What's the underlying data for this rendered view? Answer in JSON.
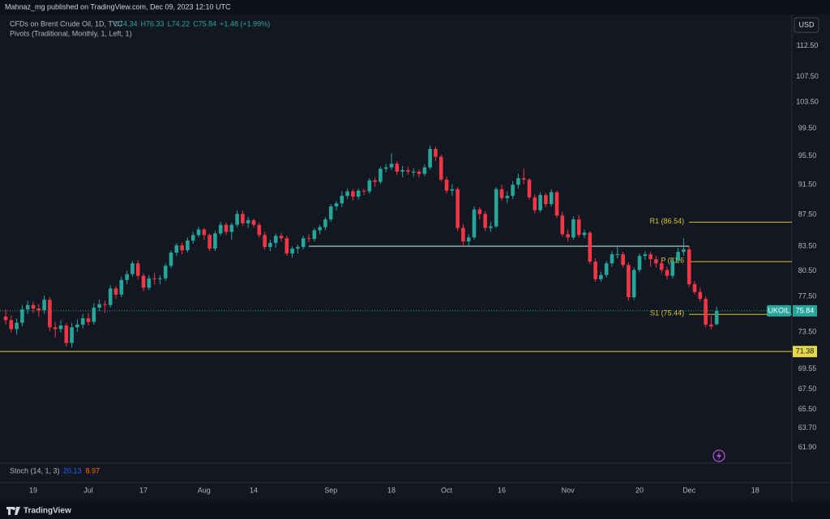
{
  "header": {
    "published": "Mahnaz_mg published on TradingView.com, Dec 09, 2023 12:10 UTC",
    "currency": "USD",
    "brand": "TradingView"
  },
  "chart_data": {
    "type": "candlestick",
    "symbol_line": "CFDs on Brent Crude Oil, 1D, TVC",
    "ohlc_legend": [
      "O74.34",
      "H76.33",
      "L74.22",
      "C75.84",
      "+1.48 (+1.99%)"
    ],
    "indicator": "Pivots (Traditional, Monthly, 1, Left, 1)",
    "stoch": {
      "name": "Stoch (14, 1, 3)",
      "k": "20.13",
      "d": "8.97",
      "k_color": "#2962ff",
      "d_color": "#ff6d00"
    },
    "log_scale": true,
    "grid": false,
    "up_color": "#26a69a",
    "down_color": "#f23645",
    "ylim": [
      60.6,
      117.6
    ],
    "yticks": [
      {
        "value": 112.5,
        "label": "112.50"
      },
      {
        "value": 107.5,
        "label": "107.50"
      },
      {
        "value": 103.5,
        "label": "103.50"
      },
      {
        "value": 99.5,
        "label": "99.50"
      },
      {
        "value": 95.5,
        "label": "95.50"
      },
      {
        "value": 91.5,
        "label": "91.50"
      },
      {
        "value": 87.5,
        "label": "87.50"
      },
      {
        "value": 83.5,
        "label": "83.50"
      },
      {
        "value": 80.5,
        "label": "80.50"
      },
      {
        "value": 77.5,
        "label": "77.50"
      },
      {
        "value": 73.5,
        "label": "73.50"
      },
      {
        "value": 69.55,
        "label": "69.55"
      },
      {
        "value": 67.5,
        "label": "67.50"
      },
      {
        "value": 65.5,
        "label": "65.50"
      },
      {
        "value": 63.7,
        "label": "63.70"
      },
      {
        "value": 61.9,
        "label": "61.90"
      }
    ],
    "categories": [
      null,
      null,
      null,
      null,
      null,
      "19",
      null,
      null,
      null,
      null,
      null,
      null,
      null,
      null,
      null,
      "Jul",
      null,
      null,
      null,
      null,
      null,
      null,
      null,
      null,
      null,
      "17",
      null,
      null,
      null,
      null,
      null,
      null,
      null,
      null,
      null,
      null,
      "Aug",
      null,
      null,
      null,
      null,
      null,
      null,
      null,
      null,
      "14",
      null,
      null,
      null,
      null,
      null,
      null,
      null,
      null,
      null,
      null,
      null,
      null,
      null,
      "Sep",
      null,
      null,
      null,
      null,
      null,
      null,
      null,
      null,
      null,
      null,
      "18",
      null,
      null,
      null,
      null,
      null,
      null,
      null,
      null,
      null,
      "Oct",
      null,
      null,
      null,
      null,
      null,
      null,
      null,
      null,
      null,
      "16",
      null,
      null,
      null,
      null,
      null,
      null,
      null,
      null,
      null,
      null,
      null,
      "Nov",
      null,
      null,
      null,
      null,
      null,
      null,
      null,
      null,
      null,
      null,
      null,
      null,
      "20",
      null,
      null,
      null,
      null,
      null,
      null,
      null,
      null,
      "Dec",
      null,
      null,
      null,
      null,
      null,
      null,
      null,
      null,
      null,
      null,
      null,
      "18",
      null,
      null,
      null,
      null,
      null
    ],
    "ohlc": [
      [
        75.2,
        76.0,
        74.3,
        74.8
      ],
      [
        74.8,
        75.3,
        73.4,
        73.8
      ],
      [
        73.8,
        75.0,
        73.2,
        74.5
      ],
      [
        74.5,
        76.5,
        74.1,
        76.0
      ],
      [
        76.0,
        77.0,
        75.5,
        76.5
      ],
      [
        76.5,
        76.9,
        75.6,
        76.1
      ],
      [
        76.1,
        76.6,
        75.2,
        75.9
      ],
      [
        75.9,
        77.6,
        75.5,
        77.1
      ],
      [
        77.1,
        77.4,
        73.6,
        74.0
      ],
      [
        74.0,
        74.6,
        72.9,
        73.8
      ],
      [
        73.8,
        74.8,
        73.4,
        74.2
      ],
      [
        74.2,
        74.5,
        71.9,
        72.3
      ],
      [
        72.3,
        74.5,
        71.8,
        74.0
      ],
      [
        74.0,
        74.9,
        73.5,
        74.3
      ],
      [
        74.3,
        75.5,
        73.9,
        75.0
      ],
      [
        75.0,
        75.6,
        74.2,
        74.6
      ],
      [
        74.6,
        76.7,
        74.3,
        76.2
      ],
      [
        76.2,
        77.1,
        75.8,
        76.6
      ],
      [
        76.6,
        77.0,
        75.6,
        76.5
      ],
      [
        76.5,
        78.8,
        76.2,
        78.4
      ],
      [
        78.4,
        78.7,
        77.2,
        77.7
      ],
      [
        77.7,
        79.8,
        77.4,
        79.4
      ],
      [
        79.4,
        80.5,
        78.9,
        80.1
      ],
      [
        80.1,
        81.7,
        79.8,
        81.4
      ],
      [
        81.4,
        81.8,
        79.5,
        79.9
      ],
      [
        79.9,
        80.2,
        78.1,
        78.5
      ],
      [
        78.5,
        80.0,
        78.2,
        79.6
      ],
      [
        79.6,
        80.2,
        78.9,
        79.5
      ],
      [
        79.5,
        80.0,
        78.9,
        79.6
      ],
      [
        79.6,
        81.4,
        79.3,
        81.1
      ],
      [
        81.1,
        83.0,
        80.8,
        82.7
      ],
      [
        82.7,
        83.9,
        82.3,
        83.6
      ],
      [
        83.6,
        84.0,
        82.5,
        83.0
      ],
      [
        83.0,
        84.6,
        82.7,
        84.2
      ],
      [
        84.2,
        85.3,
        83.8,
        84.9
      ],
      [
        84.9,
        86.0,
        84.6,
        85.6
      ],
      [
        85.6,
        85.8,
        84.3,
        84.9
      ],
      [
        84.9,
        85.1,
        82.9,
        83.2
      ],
      [
        83.2,
        85.4,
        82.9,
        85.1
      ],
      [
        85.1,
        86.6,
        84.8,
        86.2
      ],
      [
        86.2,
        86.5,
        84.9,
        85.3
      ],
      [
        85.3,
        86.5,
        84.3,
        86.2
      ],
      [
        86.2,
        88.1,
        85.9,
        87.6
      ],
      [
        87.6,
        88.0,
        86.1,
        86.4
      ],
      [
        86.4,
        87.2,
        85.8,
        86.8
      ],
      [
        86.8,
        87.0,
        85.9,
        86.2
      ],
      [
        86.2,
        86.5,
        84.6,
        84.9
      ],
      [
        84.9,
        85.3,
        83.1,
        83.4
      ],
      [
        83.4,
        84.3,
        82.9,
        83.9
      ],
      [
        83.9,
        85.1,
        83.3,
        84.8
      ],
      [
        84.8,
        85.2,
        84.1,
        84.5
      ],
      [
        84.5,
        84.8,
        82.3,
        82.6
      ],
      [
        82.6,
        83.5,
        82.1,
        83.2
      ],
      [
        83.2,
        83.7,
        82.6,
        83.4
      ],
      [
        83.4,
        84.8,
        83.1,
        84.5
      ],
      [
        84.5,
        85.0,
        84.0,
        84.4
      ],
      [
        84.4,
        85.8,
        84.1,
        85.5
      ],
      [
        85.5,
        86.2,
        85.0,
        85.9
      ],
      [
        85.9,
        87.2,
        85.5,
        86.9
      ],
      [
        86.9,
        88.9,
        86.6,
        88.6
      ],
      [
        88.6,
        89.3,
        88.1,
        89.0
      ],
      [
        89.0,
        90.6,
        88.5,
        90.0
      ],
      [
        90.0,
        91.0,
        89.6,
        90.6
      ],
      [
        90.6,
        90.9,
        89.4,
        89.9
      ],
      [
        89.9,
        91.0,
        89.5,
        90.7
      ],
      [
        90.7,
        91.0,
        90.1,
        90.6
      ],
      [
        90.6,
        92.4,
        90.3,
        92.1
      ],
      [
        92.1,
        92.5,
        91.2,
        91.9
      ],
      [
        91.9,
        94.0,
        91.6,
        93.7
      ],
      [
        93.7,
        94.4,
        93.2,
        93.9
      ],
      [
        93.9,
        95.9,
        93.5,
        94.4
      ],
      [
        94.4,
        94.8,
        92.8,
        93.3
      ],
      [
        93.3,
        94.1,
        92.5,
        93.5
      ],
      [
        93.5,
        94.0,
        92.9,
        93.3
      ],
      [
        93.3,
        93.8,
        92.6,
        93.3
      ],
      [
        93.3,
        93.6,
        92.5,
        93.0
      ],
      [
        93.0,
        94.3,
        92.7,
        93.9
      ],
      [
        93.9,
        97.0,
        93.6,
        96.5
      ],
      [
        96.5,
        96.8,
        94.8,
        95.4
      ],
      [
        95.4,
        95.7,
        91.9,
        92.2
      ],
      [
        92.2,
        92.6,
        90.3,
        90.7
      ],
      [
        90.7,
        91.6,
        90.0,
        90.9
      ],
      [
        90.9,
        91.2,
        85.4,
        85.8
      ],
      [
        85.8,
        86.3,
        83.4,
        84.1
      ],
      [
        84.1,
        85.0,
        83.5,
        84.6
      ],
      [
        84.6,
        88.6,
        84.3,
        88.2
      ],
      [
        88.2,
        88.5,
        86.9,
        87.6
      ],
      [
        87.6,
        88.0,
        85.4,
        85.8
      ],
      [
        85.8,
        86.6,
        85.3,
        86.0
      ],
      [
        86.0,
        91.2,
        85.8,
        90.9
      ],
      [
        90.9,
        91.5,
        89.3,
        89.7
      ],
      [
        89.7,
        90.6,
        89.0,
        90.0
      ],
      [
        90.0,
        92.0,
        89.6,
        91.5
      ],
      [
        91.5,
        93.0,
        91.0,
        92.4
      ],
      [
        92.4,
        93.7,
        91.6,
        92.2
      ],
      [
        92.2,
        92.4,
        89.5,
        89.8
      ],
      [
        89.8,
        90.2,
        87.7,
        88.1
      ],
      [
        88.1,
        90.5,
        87.8,
        90.1
      ],
      [
        90.1,
        90.4,
        88.5,
        88.9
      ],
      [
        88.9,
        90.9,
        88.6,
        90.5
      ],
      [
        90.5,
        90.7,
        87.1,
        87.4
      ],
      [
        87.4,
        87.9,
        84.7,
        85.0
      ],
      [
        85.0,
        85.6,
        84.1,
        84.6
      ],
      [
        84.6,
        87.3,
        84.3,
        86.9
      ],
      [
        86.9,
        87.5,
        84.6,
        84.9
      ],
      [
        84.9,
        85.6,
        84.5,
        85.2
      ],
      [
        85.2,
        85.4,
        81.3,
        81.6
      ],
      [
        81.6,
        82.0,
        79.2,
        79.5
      ],
      [
        79.5,
        80.4,
        79.2,
        80.0
      ],
      [
        80.0,
        81.7,
        79.7,
        81.4
      ],
      [
        81.4,
        82.9,
        81.0,
        82.5
      ],
      [
        82.5,
        83.5,
        82.0,
        82.5
      ],
      [
        82.5,
        82.8,
        80.9,
        81.2
      ],
      [
        81.2,
        81.5,
        77.0,
        77.4
      ],
      [
        77.4,
        80.9,
        77.1,
        80.6
      ],
      [
        80.6,
        82.6,
        80.3,
        82.3
      ],
      [
        82.3,
        82.9,
        81.8,
        82.5
      ],
      [
        82.5,
        82.8,
        81.0,
        81.9
      ],
      [
        81.9,
        82.3,
        80.9,
        81.4
      ],
      [
        81.4,
        81.7,
        80.2,
        80.6
      ],
      [
        80.6,
        81.0,
        79.5,
        79.9
      ],
      [
        79.9,
        82.0,
        79.6,
        81.7
      ],
      [
        81.7,
        83.3,
        81.4,
        82.8
      ],
      [
        82.8,
        84.5,
        82.3,
        83.1
      ],
      [
        83.1,
        83.5,
        78.6,
        78.9
      ],
      [
        78.9,
        79.3,
        77.7,
        78.0
      ],
      [
        78.0,
        78.5,
        76.9,
        77.2
      ],
      [
        77.2,
        77.5,
        74.0,
        74.3
      ],
      [
        74.3,
        75.3,
        73.8,
        74.1
      ],
      [
        74.34,
        76.33,
        74.22,
        75.84
      ],
      null,
      null,
      null,
      null,
      null,
      null,
      null,
      null,
      null,
      null,
      null,
      null
    ],
    "pivots": [
      {
        "label": "R1 (86.54)",
        "value": 86.54
      },
      {
        "label": "P (81.6",
        "value": 81.6
      },
      {
        "label": "S1 (75.44)",
        "value": 75.44
      }
    ],
    "pivot_color": "#d4c42a",
    "support_line": {
      "value": 71.38,
      "label": "71.38",
      "color": "#e5d94a"
    },
    "resistance_line": {
      "value": 83.5,
      "color": "#b2dfdb"
    },
    "last_price": {
      "symbol": "UKOIL",
      "value": 75.84,
      "label": "75.84"
    }
  }
}
